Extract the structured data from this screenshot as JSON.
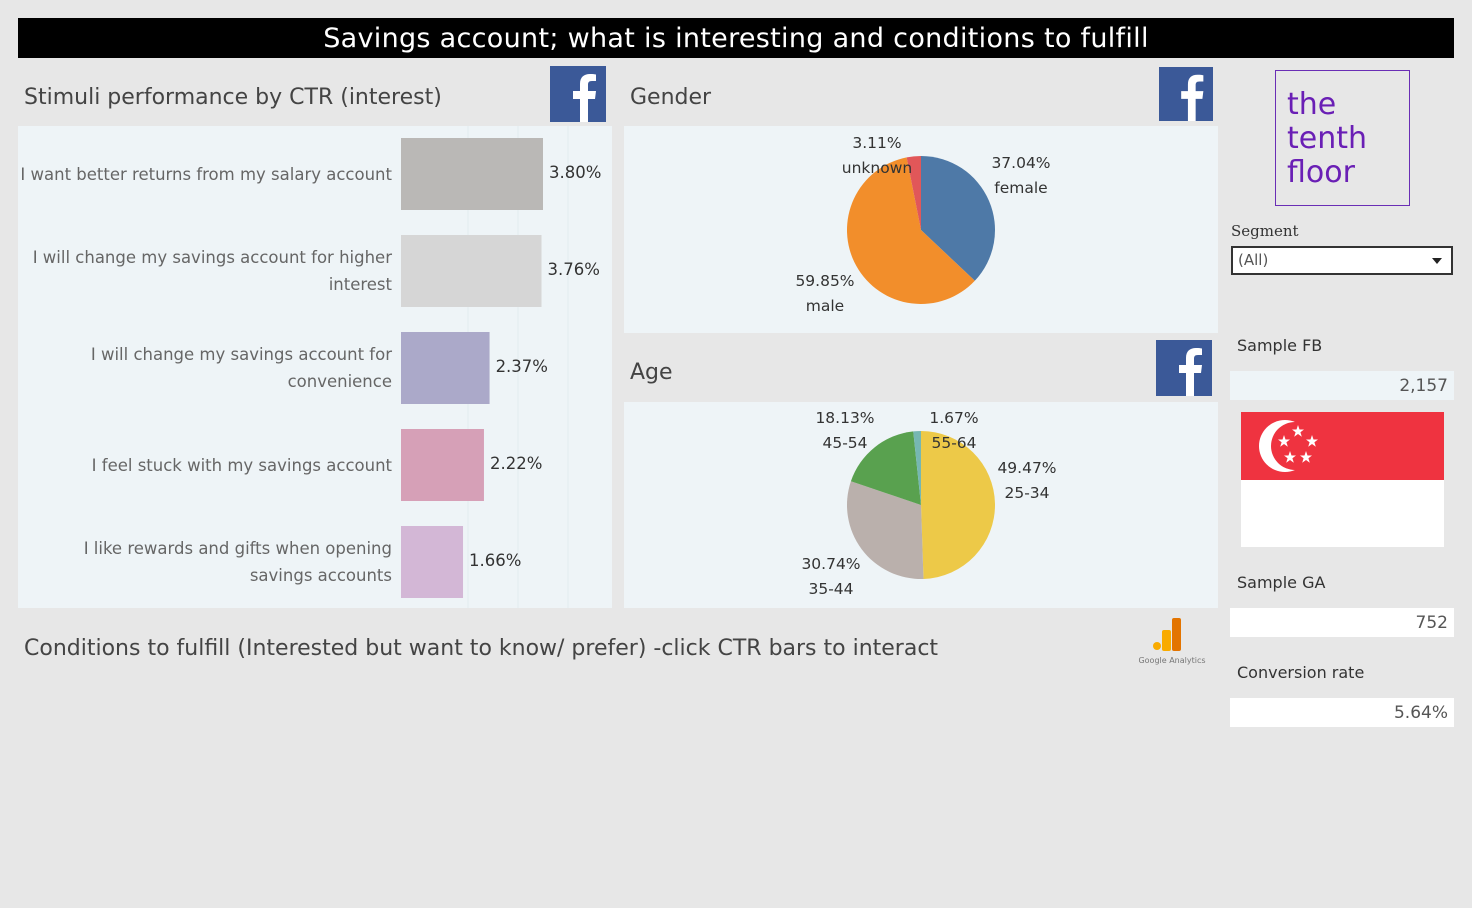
{
  "title": "Savings account; what is interesting and conditions to fulfill",
  "stimuli": {
    "title": "Stimuli performance by CTR (interest)"
  },
  "gender": {
    "title": "Gender"
  },
  "age": {
    "title": "Age"
  },
  "conditions": {
    "title": "Conditions to fulfill (Interested but want to know/ prefer) -click CTR bars to interact"
  },
  "ga": {
    "caption": "Google Analytics"
  },
  "logo": {
    "line1": "the",
    "line2": "tenth",
    "line3": "floor"
  },
  "segment": {
    "label": "Segment",
    "value": "(All)"
  },
  "metrics": {
    "sample_fb_label": "Sample FB",
    "sample_fb_value": "2,157",
    "sample_ga_label": "Sample GA",
    "sample_ga_value": "752",
    "conversion_label": "Conversion rate",
    "conversion_value": "5.64%"
  },
  "colors": {
    "facebook": "#3b5998",
    "title_bg": "#000000",
    "panel_bg": "#eef4f7",
    "bar1": "#bab8b6",
    "bar2": "#d6d6d6",
    "bar3": "#aba9c9",
    "bar4": "#d6a0b7",
    "bar5": "#d3b7d6",
    "female": "#4e79a7",
    "male": "#f28e2b",
    "unknown": "#e15759",
    "age_25_34": "#edc948",
    "age_35_44": "#bab0ac",
    "age_45_54": "#59a14f",
    "age_55_64": "#76b7b2",
    "singapore_red": "#ef3340",
    "logo_purple": "#6a1fb5"
  },
  "chart_data": [
    {
      "type": "bar",
      "orientation": "horizontal",
      "title": "Stimuli performance by CTR (interest)",
      "categories": [
        [
          "I want better returns from my salary account"
        ],
        [
          "I will change my savings account for higher",
          "interest"
        ],
        [
          "I will change my savings account for",
          "convenience"
        ],
        [
          "I feel stuck with my savings account"
        ],
        [
          "I like rewards and gifts when opening",
          "savings accounts"
        ]
      ],
      "values": [
        3.8,
        3.76,
        2.37,
        2.22,
        1.66
      ],
      "labels": [
        "3.80%",
        "3.76%",
        "2.37%",
        "2.22%",
        "1.66%"
      ],
      "xlim": [
        0,
        3.8
      ]
    },
    {
      "type": "pie",
      "title": "Gender",
      "slices": [
        {
          "name": "female",
          "value": 37.04,
          "label": "37.04%"
        },
        {
          "name": "male",
          "value": 59.85,
          "label": "59.85%"
        },
        {
          "name": "unknown",
          "value": 3.11,
          "label": "3.11%"
        }
      ]
    },
    {
      "type": "pie",
      "title": "Age",
      "slices": [
        {
          "name": "25-34",
          "value": 49.47,
          "label": "49.47%"
        },
        {
          "name": "35-44",
          "value": 30.74,
          "label": "30.74%"
        },
        {
          "name": "45-54",
          "value": 18.13,
          "label": "18.13%"
        },
        {
          "name": "55-64",
          "value": 1.67,
          "label": "1.67%"
        }
      ]
    }
  ]
}
